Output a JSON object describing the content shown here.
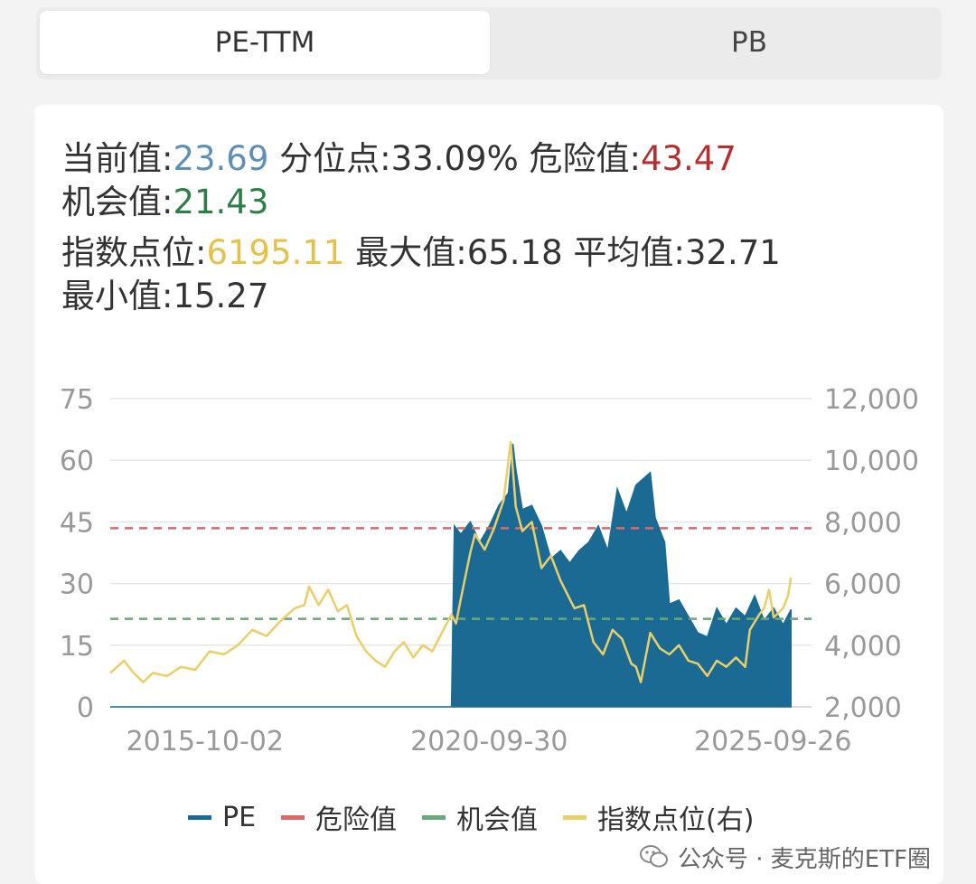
{
  "tabs": [
    {
      "label": "PE-TTM",
      "active": true
    },
    {
      "label": "PB",
      "active": false
    }
  ],
  "stats": {
    "current_label": "当前值:",
    "current_value": "23.69",
    "percentile_label": "分位点:",
    "percentile_value": "33.09%",
    "danger_label": "危险值:",
    "danger_value": "43.47",
    "opportunity_label": "机会值:",
    "opportunity_value": "21.43",
    "index_label": "指数点位:",
    "index_value": "6195.11",
    "max_label": "最大值:",
    "max_value": "65.18",
    "avg_label": "平均值:",
    "avg_value": "32.71",
    "min_label": "最小值:",
    "min_value": "15.27"
  },
  "colors": {
    "pe": "#1a6a93",
    "danger": "#d86a6a",
    "opportunity": "#6aa77a",
    "index": "#e8cf6a",
    "current": "#5f8fb6",
    "danger_text": "#b43030",
    "opportunity_text": "#2f7d47",
    "index_text": "#e3c14a"
  },
  "chart_data": {
    "type": "area",
    "left_axis": {
      "ticks": [
        "0",
        "15",
        "30",
        "45",
        "60",
        "75"
      ],
      "ylim": [
        0,
        75
      ]
    },
    "right_axis": {
      "ticks": [
        "2,000",
        "4,000",
        "6,000",
        "8,000",
        "10,000",
        "12,000"
      ],
      "ylim": [
        2000,
        12000
      ]
    },
    "x_ticks": [
      "2015-10-02",
      "2020-09-30",
      "2025-09-26"
    ],
    "xlim": [
      "2014-02-01",
      "2026-06-01"
    ],
    "reference_lines": [
      {
        "name": "危险值",
        "value": 43.47
      },
      {
        "name": "机会值",
        "value": 21.43
      }
    ],
    "series": [
      {
        "name": "PE",
        "axis": "left",
        "points": [
          [
            "2014-02-01",
            0
          ],
          [
            "2020-02-01",
            0
          ],
          [
            "2020-02-20",
            44
          ],
          [
            "2020-04-01",
            42
          ],
          [
            "2020-06-01",
            45
          ],
          [
            "2020-08-01",
            40
          ],
          [
            "2020-10-01",
            44
          ],
          [
            "2020-12-01",
            49
          ],
          [
            "2021-02-01",
            52
          ],
          [
            "2021-03-01",
            64
          ],
          [
            "2021-03-20",
            58
          ],
          [
            "2021-05-01",
            48
          ],
          [
            "2021-07-01",
            49
          ],
          [
            "2021-09-01",
            44
          ],
          [
            "2021-11-01",
            36
          ],
          [
            "2022-01-01",
            38
          ],
          [
            "2022-03-01",
            35
          ],
          [
            "2022-05-01",
            38
          ],
          [
            "2022-07-01",
            40
          ],
          [
            "2022-09-01",
            44
          ],
          [
            "2022-11-01",
            38
          ],
          [
            "2023-01-01",
            53
          ],
          [
            "2023-03-01",
            47
          ],
          [
            "2023-05-01",
            54
          ],
          [
            "2023-07-01",
            56
          ],
          [
            "2023-08-01",
            57
          ],
          [
            "2023-09-01",
            46
          ],
          [
            "2023-11-01",
            40
          ],
          [
            "2023-12-01",
            25
          ],
          [
            "2024-02-01",
            26
          ],
          [
            "2024-04-01",
            22
          ],
          [
            "2024-06-01",
            18
          ],
          [
            "2024-08-01",
            17
          ],
          [
            "2024-10-01",
            24
          ],
          [
            "2024-12-01",
            20
          ],
          [
            "2025-02-01",
            24
          ],
          [
            "2025-04-01",
            22
          ],
          [
            "2025-06-01",
            27
          ],
          [
            "2025-08-01",
            21
          ],
          [
            "2025-10-01",
            24
          ],
          [
            "2025-12-01",
            20
          ],
          [
            "2026-01-20",
            23.69
          ]
        ]
      },
      {
        "name": "指数点位(右)",
        "axis": "right",
        "points": [
          [
            "2014-02-01",
            3100
          ],
          [
            "2014-05-01",
            3500
          ],
          [
            "2014-07-01",
            3100
          ],
          [
            "2014-09-01",
            2800
          ],
          [
            "2014-11-01",
            3100
          ],
          [
            "2015-02-01",
            3000
          ],
          [
            "2015-05-01",
            3300
          ],
          [
            "2015-08-01",
            3200
          ],
          [
            "2015-11-01",
            3800
          ],
          [
            "2016-02-01",
            3700
          ],
          [
            "2016-05-01",
            4000
          ],
          [
            "2016-08-01",
            4500
          ],
          [
            "2016-11-01",
            4300
          ],
          [
            "2017-02-01",
            4800
          ],
          [
            "2017-05-01",
            5200
          ],
          [
            "2017-07-01",
            5300
          ],
          [
            "2017-08-01",
            5900
          ],
          [
            "2017-10-01",
            5300
          ],
          [
            "2017-12-01",
            5800
          ],
          [
            "2018-02-01",
            5100
          ],
          [
            "2018-04-01",
            5300
          ],
          [
            "2018-06-01",
            4300
          ],
          [
            "2018-08-01",
            3800
          ],
          [
            "2018-10-01",
            3500
          ],
          [
            "2018-12-01",
            3300
          ],
          [
            "2019-02-01",
            3800
          ],
          [
            "2019-04-01",
            4100
          ],
          [
            "2019-06-01",
            3600
          ],
          [
            "2019-08-01",
            4000
          ],
          [
            "2019-10-01",
            3800
          ],
          [
            "2019-12-01",
            4400
          ],
          [
            "2020-02-01",
            5000
          ],
          [
            "2020-03-01",
            4700
          ],
          [
            "2020-04-01",
            5500
          ],
          [
            "2020-06-01",
            7000
          ],
          [
            "2020-07-01",
            7600
          ],
          [
            "2020-09-01",
            7100
          ],
          [
            "2020-11-01",
            7800
          ],
          [
            "2021-01-01",
            8700
          ],
          [
            "2021-02-15",
            10600
          ],
          [
            "2021-03-20",
            8500
          ],
          [
            "2021-05-01",
            7700
          ],
          [
            "2021-07-01",
            8000
          ],
          [
            "2021-09-01",
            6500
          ],
          [
            "2021-11-01",
            6900
          ],
          [
            "2022-01-01",
            6100
          ],
          [
            "2022-03-01",
            5500
          ],
          [
            "2022-04-01",
            5200
          ],
          [
            "2022-06-01",
            5300
          ],
          [
            "2022-08-01",
            4100
          ],
          [
            "2022-10-01",
            3700
          ],
          [
            "2022-12-01",
            4500
          ],
          [
            "2023-02-01",
            4200
          ],
          [
            "2023-04-01",
            3400
          ],
          [
            "2023-05-01",
            3300
          ],
          [
            "2023-06-01",
            2800
          ],
          [
            "2023-08-01",
            4400
          ],
          [
            "2023-10-01",
            3900
          ],
          [
            "2023-12-01",
            3700
          ],
          [
            "2024-02-01",
            4000
          ],
          [
            "2024-04-01",
            3500
          ],
          [
            "2024-06-01",
            3400
          ],
          [
            "2024-08-01",
            3000
          ],
          [
            "2024-10-01",
            3500
          ],
          [
            "2024-12-01",
            3300
          ],
          [
            "2025-02-01",
            3600
          ],
          [
            "2025-04-01",
            3300
          ],
          [
            "2025-05-01",
            4500
          ],
          [
            "2025-07-01",
            5000
          ],
          [
            "2025-08-01",
            5200
          ],
          [
            "2025-09-01",
            5800
          ],
          [
            "2025-10-01",
            4900
          ],
          [
            "2025-12-01",
            5200
          ],
          [
            "2026-01-01",
            5600
          ],
          [
            "2026-01-20",
            6195.11
          ]
        ]
      }
    ],
    "legend": [
      "PE",
      "危险值",
      "机会值",
      "指数点位(右)"
    ]
  },
  "watermark": "公众号 · 麦克斯的ETF圈"
}
